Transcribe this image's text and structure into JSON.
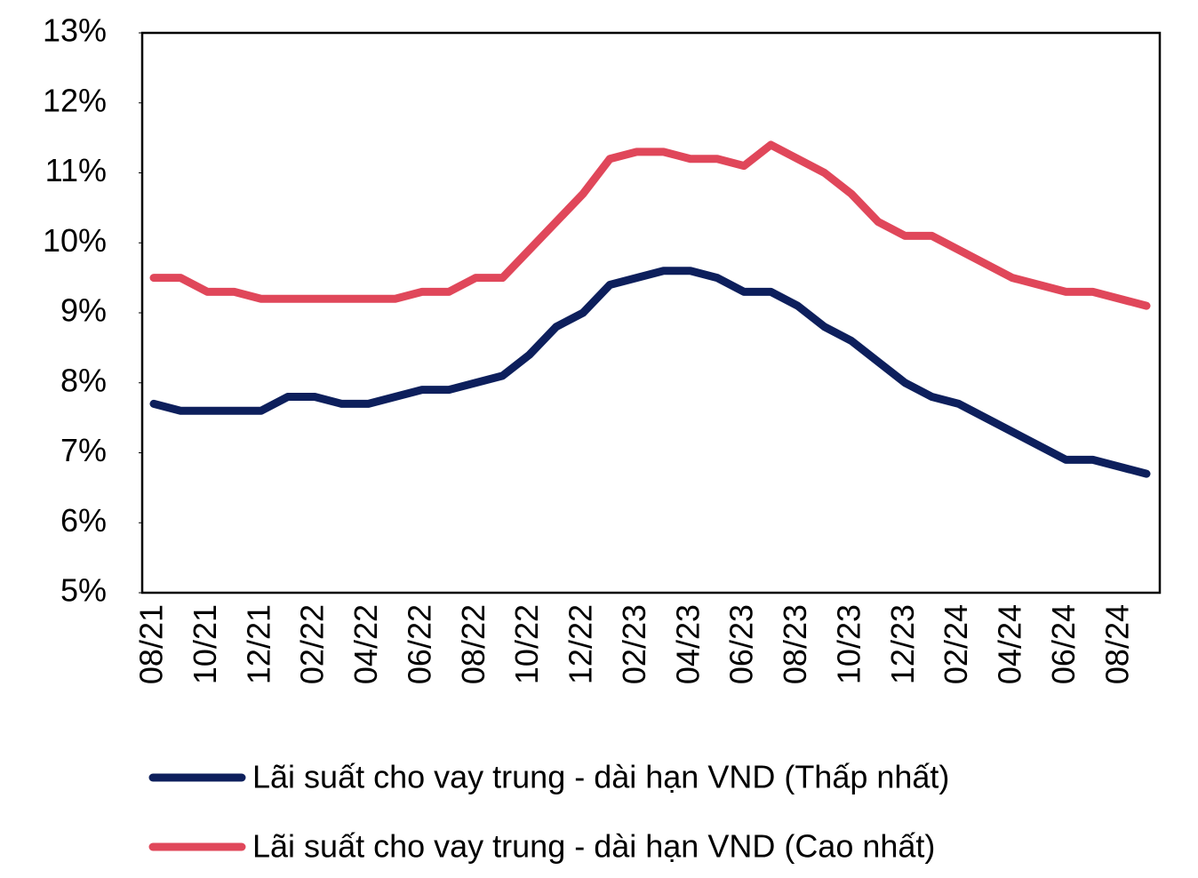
{
  "chart_data": {
    "type": "line",
    "categories": [
      "08/21",
      null,
      "10/21",
      null,
      "12/21",
      null,
      "02/22",
      null,
      "04/22",
      null,
      "06/22",
      null,
      "08/22",
      null,
      "10/22",
      null,
      "12/22",
      null,
      "02/23",
      null,
      "04/23",
      null,
      "06/23",
      null,
      "08/23",
      null,
      "10/23",
      null,
      "12/23",
      null,
      "02/24",
      null,
      "04/24",
      null,
      "06/24",
      null,
      "08/24",
      null
    ],
    "series": [
      {
        "name": "Lãi suất cho vay trung - dài hạn VND (Thấp nhất)",
        "color": "#0d1f5c",
        "values": [
          7.7,
          7.6,
          7.6,
          7.6,
          7.6,
          7.8,
          7.8,
          7.7,
          7.7,
          7.8,
          7.9,
          7.9,
          8.0,
          8.1,
          8.4,
          8.8,
          9.0,
          9.4,
          9.5,
          9.6,
          9.6,
          9.5,
          9.3,
          9.3,
          9.1,
          8.8,
          8.6,
          8.3,
          8.0,
          7.8,
          7.7,
          7.5,
          7.3,
          7.1,
          6.9,
          6.9,
          6.8,
          6.7
        ]
      },
      {
        "name": "Lãi suất cho vay trung - dài hạn VND (Cao nhất)",
        "color": "#e0475a",
        "values": [
          9.5,
          9.5,
          9.3,
          9.3,
          9.2,
          9.2,
          9.2,
          9.2,
          9.2,
          9.2,
          9.3,
          9.3,
          9.5,
          9.5,
          9.9,
          10.3,
          10.7,
          11.2,
          11.3,
          11.3,
          11.2,
          11.2,
          11.1,
          11.4,
          11.2,
          11.0,
          10.7,
          10.3,
          10.1,
          10.1,
          9.9,
          9.7,
          9.5,
          9.4,
          9.3,
          9.3,
          9.2,
          9.1
        ]
      }
    ],
    "ylim": [
      5,
      13
    ],
    "yticks": [
      {
        "value": 5,
        "label": "5%"
      },
      {
        "value": 6,
        "label": "6%"
      },
      {
        "value": 7,
        "label": "7%"
      },
      {
        "value": 8,
        "label": "8%"
      },
      {
        "value": 9,
        "label": "9%"
      },
      {
        "value": 10,
        "label": "10%"
      },
      {
        "value": 11,
        "label": "11%"
      },
      {
        "value": 12,
        "label": "12%"
      },
      {
        "value": 13,
        "label": "13%"
      }
    ],
    "grid": false,
    "legend": "bottom"
  }
}
